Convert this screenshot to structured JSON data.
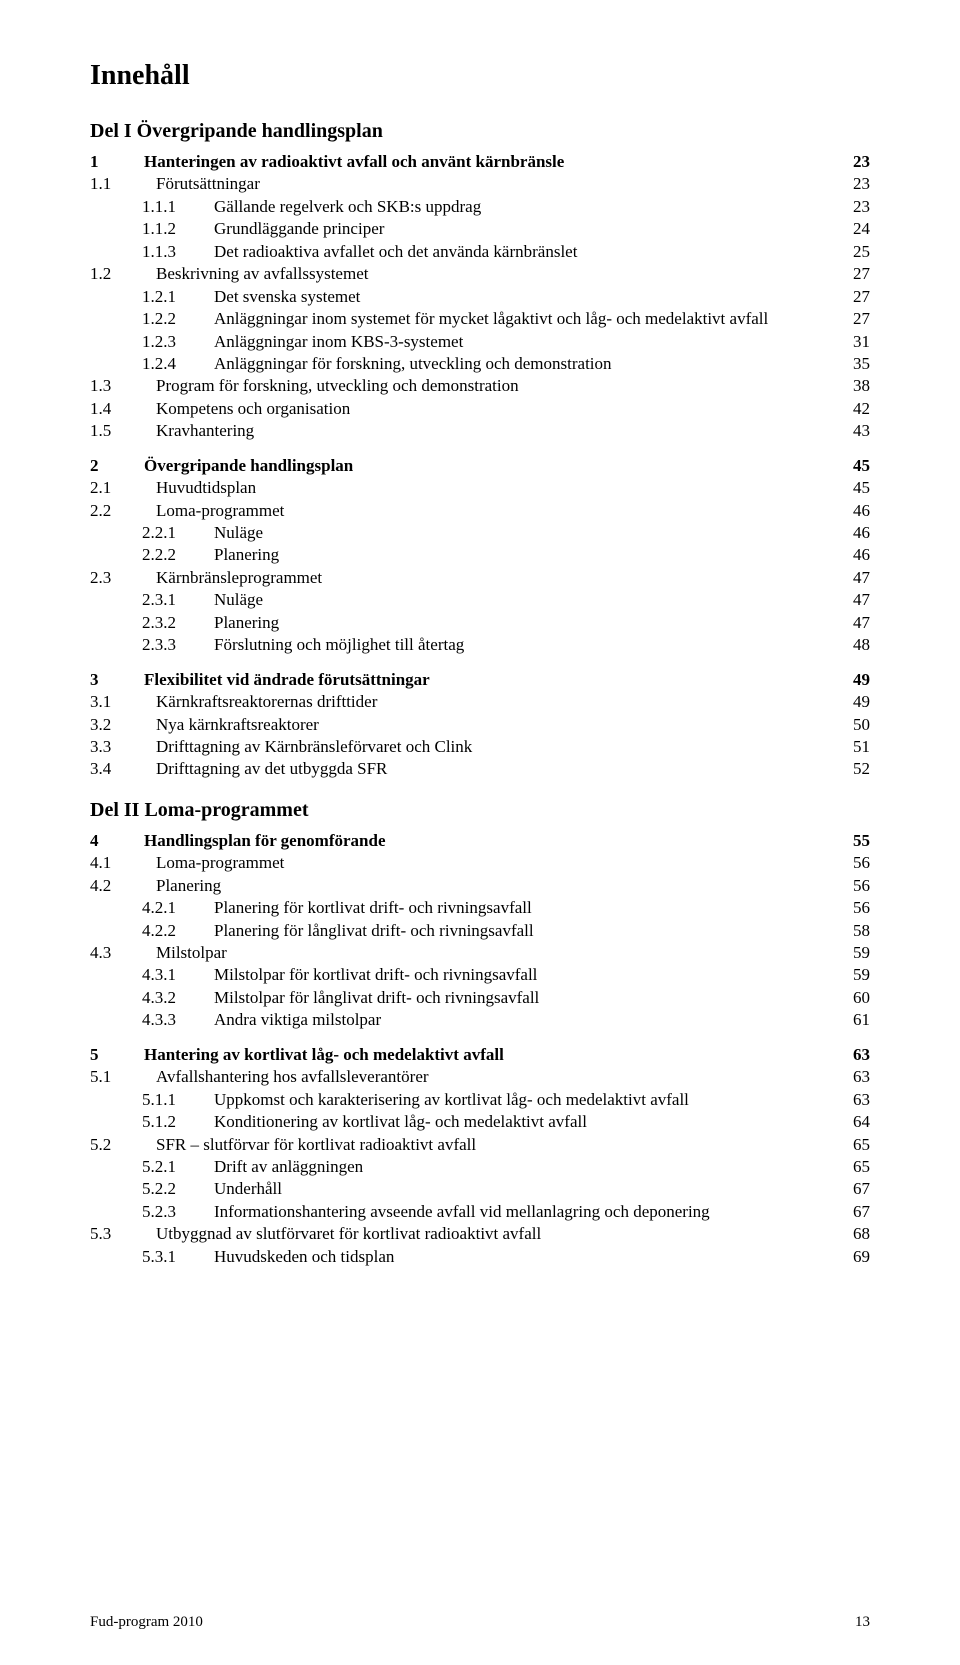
{
  "title": "Innehåll",
  "partI": "Del I  Övergripande handlingsplan",
  "partII": "Del II  Loma-programmet",
  "footerLeft": "Fud-program 2010",
  "footerRight": "13",
  "toc": [
    {
      "lvl": 1,
      "bold": true,
      "num": "1",
      "text": "Hanteringen av radioaktivt avfall och använt kärnbränsle",
      "page": "23"
    },
    {
      "lvl": 2,
      "num": "1.1",
      "text": "Förutsättningar",
      "page": "23"
    },
    {
      "lvl": 3,
      "num": "1.1.1",
      "text": "Gällande regelverk och SKB:s uppdrag",
      "page": "23"
    },
    {
      "lvl": 3,
      "num": "1.1.2",
      "text": "Grundläggande principer",
      "page": "24"
    },
    {
      "lvl": 3,
      "num": "1.1.3",
      "text": "Det radioaktiva avfallet och det använda kärnbränslet",
      "page": "25"
    },
    {
      "lvl": 2,
      "num": "1.2",
      "text": "Beskrivning av avfallssystemet",
      "page": "27"
    },
    {
      "lvl": 3,
      "num": "1.2.1",
      "text": "Det svenska systemet",
      "page": "27"
    },
    {
      "lvl": 3,
      "num": "1.2.2",
      "text": "Anläggningar inom systemet för mycket lågaktivt och låg- och medelaktivt avfall",
      "page": "27",
      "wrap": true
    },
    {
      "lvl": 3,
      "num": "1.2.3",
      "text": "Anläggningar inom KBS-3-systemet",
      "page": "31"
    },
    {
      "lvl": 3,
      "num": "1.2.4",
      "text": "Anläggningar för forskning, utveckling och demonstration",
      "page": "35"
    },
    {
      "lvl": 2,
      "num": "1.3",
      "text": "Program för forskning, utveckling och demonstration",
      "page": "38"
    },
    {
      "lvl": 2,
      "num": "1.4",
      "text": "Kompetens och organisation",
      "page": "42"
    },
    {
      "lvl": 2,
      "num": "1.5",
      "text": "Kravhantering",
      "page": "43"
    },
    {
      "gap": true
    },
    {
      "lvl": 1,
      "bold": true,
      "num": "2",
      "text": "Övergripande handlingsplan",
      "page": "45"
    },
    {
      "lvl": 2,
      "num": "2.1",
      "text": "Huvudtidsplan",
      "page": "45"
    },
    {
      "lvl": 2,
      "num": "2.2",
      "text": "Loma-programmet",
      "page": "46"
    },
    {
      "lvl": 3,
      "num": "2.2.1",
      "text": "Nuläge",
      "page": "46"
    },
    {
      "lvl": 3,
      "num": "2.2.2",
      "text": "Planering",
      "page": "46"
    },
    {
      "lvl": 2,
      "num": "2.3",
      "text": "Kärnbränsleprogrammet",
      "page": "47"
    },
    {
      "lvl": 3,
      "num": "2.3.1",
      "text": "Nuläge",
      "page": "47"
    },
    {
      "lvl": 3,
      "num": "2.3.2",
      "text": "Planering",
      "page": "47"
    },
    {
      "lvl": 3,
      "num": "2.3.3",
      "text": "Förslutning och möjlighet till återtag",
      "page": "48"
    },
    {
      "gap": true
    },
    {
      "lvl": 1,
      "bold": true,
      "num": "3",
      "text": "Flexibilitet vid ändrade förutsättningar",
      "page": "49"
    },
    {
      "lvl": 2,
      "num": "3.1",
      "text": "Kärnkraftsreaktorernas drifttider",
      "page": "49"
    },
    {
      "lvl": 2,
      "num": "3.2",
      "text": "Nya kärnkraftsreaktorer",
      "page": "50"
    },
    {
      "lvl": 2,
      "num": "3.3",
      "text": "Drifttagning av Kärnbränsleförvaret och Clink",
      "page": "51"
    },
    {
      "lvl": 2,
      "num": "3.4",
      "text": "Drifttagning av det utbyggda SFR",
      "page": "52"
    }
  ],
  "toc2": [
    {
      "lvl": 1,
      "bold": true,
      "num": "4",
      "text": "Handlingsplan för genomförande",
      "page": "55"
    },
    {
      "lvl": 2,
      "num": "4.1",
      "text": "Loma-programmet",
      "page": "56"
    },
    {
      "lvl": 2,
      "num": "4.2",
      "text": "Planering",
      "page": "56"
    },
    {
      "lvl": 3,
      "num": "4.2.1",
      "text": "Planering för kortlivat drift- och rivningsavfall",
      "page": "56"
    },
    {
      "lvl": 3,
      "num": "4.2.2",
      "text": "Planering för långlivat drift- och rivningsavfall",
      "page": "58"
    },
    {
      "lvl": 2,
      "num": "4.3",
      "text": "Milstolpar",
      "page": "59"
    },
    {
      "lvl": 3,
      "num": "4.3.1",
      "text": "Milstolpar för kortlivat drift- och rivningsavfall",
      "page": "59"
    },
    {
      "lvl": 3,
      "num": "4.3.2",
      "text": "Milstolpar för långlivat drift- och rivningsavfall",
      "page": "60"
    },
    {
      "lvl": 3,
      "num": "4.3.3",
      "text": "Andra viktiga milstolpar",
      "page": "61"
    },
    {
      "gap": true
    },
    {
      "lvl": 1,
      "bold": true,
      "num": "5",
      "text": "Hantering av kortlivat låg- och medelaktivt avfall",
      "page": "63"
    },
    {
      "lvl": 2,
      "num": "5.1",
      "text": "Avfallshantering hos avfallsleverantörer",
      "page": "63"
    },
    {
      "lvl": 3,
      "num": "5.1.1",
      "text": "Uppkomst och karakterisering av kortlivat låg- och medelaktivt avfall",
      "page": "63",
      "wrap": true
    },
    {
      "lvl": 3,
      "num": "5.1.2",
      "text": "Konditionering av kortlivat låg- och medelaktivt avfall",
      "page": "64"
    },
    {
      "lvl": 2,
      "num": "5.2",
      "text": "SFR – slutförvar för kortlivat radioaktivt avfall",
      "page": "65"
    },
    {
      "lvl": 3,
      "num": "5.2.1",
      "text": "Drift av anläggningen",
      "page": "65"
    },
    {
      "lvl": 3,
      "num": "5.2.2",
      "text": "Underhåll",
      "page": "67"
    },
    {
      "lvl": 3,
      "num": "5.2.3",
      "text": "Informationshantering avseende avfall vid mellanlagring och deponering",
      "page": "67",
      "wrap": true
    },
    {
      "lvl": 2,
      "num": "5.3",
      "text": "Utbyggnad av slutförvaret för kortlivat radioaktivt avfall",
      "page": "68"
    },
    {
      "lvl": 3,
      "num": "5.3.1",
      "text": "Huvudskeden och tidsplan",
      "page": "69"
    }
  ]
}
